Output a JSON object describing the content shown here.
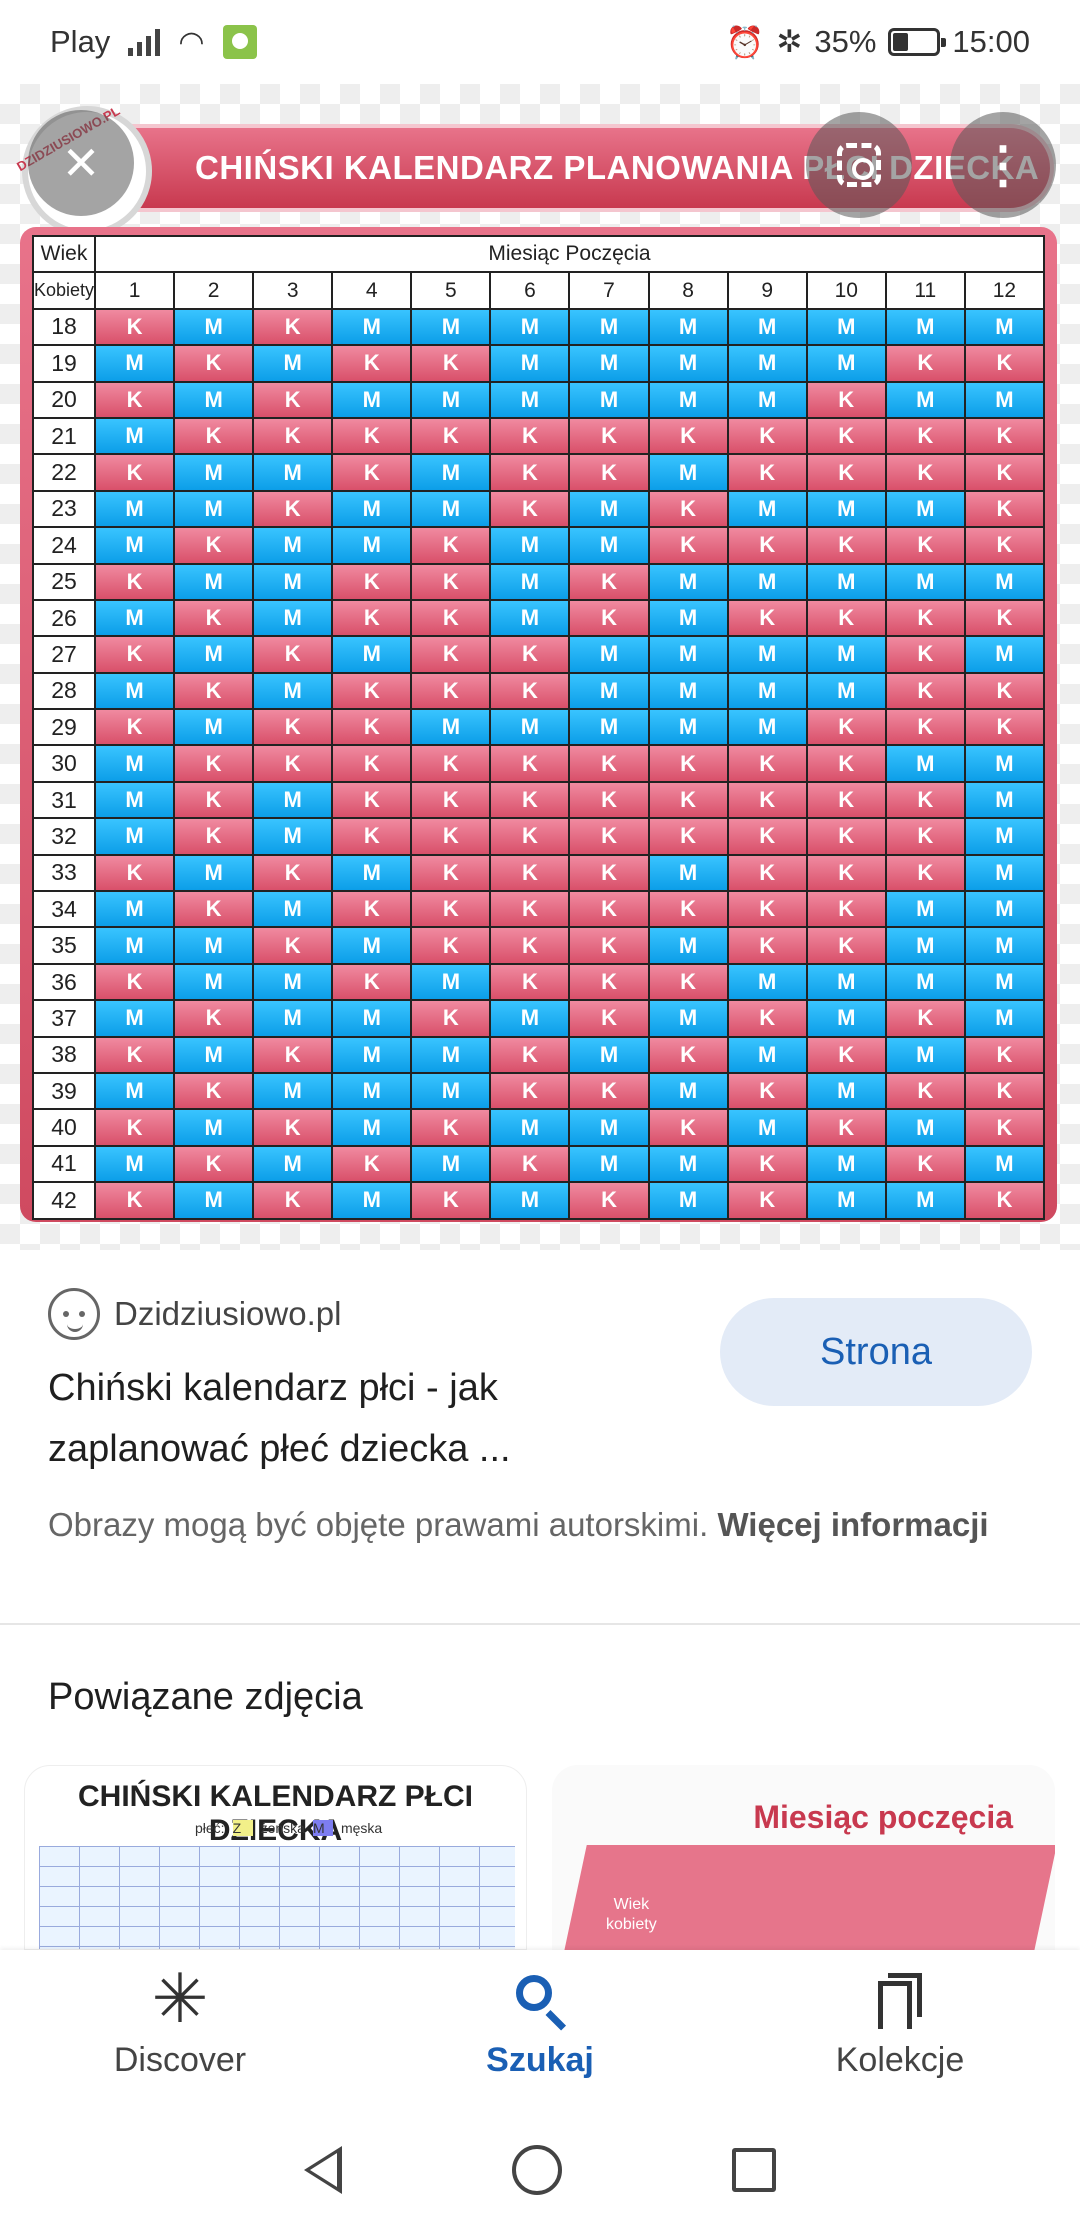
{
  "status_bar": {
    "carrier": "Play",
    "battery_text": "35%",
    "battery_level": 0.35,
    "time": "15:00"
  },
  "viewer": {
    "logo_text": "DZIDZIUSIOWO.PL",
    "chart_title": "CHIŃSKI KALENDARZ PLANOWANIA PŁCI DZIECKA",
    "table": {
      "age_header": "Wiek",
      "age_subheader": "Kobiety",
      "month_header": "Miesiąc Poczęcia",
      "months": [
        "1",
        "2",
        "3",
        "4",
        "5",
        "6",
        "7",
        "8",
        "9",
        "10",
        "11",
        "12"
      ],
      "rows": [
        {
          "age": "18",
          "values": [
            "K",
            "M",
            "K",
            "M",
            "M",
            "M",
            "M",
            "M",
            "M",
            "M",
            "M",
            "M"
          ]
        },
        {
          "age": "19",
          "values": [
            "M",
            "K",
            "M",
            "K",
            "K",
            "M",
            "M",
            "M",
            "M",
            "M",
            "K",
            "K"
          ]
        },
        {
          "age": "20",
          "values": [
            "K",
            "M",
            "K",
            "M",
            "M",
            "M",
            "M",
            "M",
            "M",
            "K",
            "M",
            "M"
          ]
        },
        {
          "age": "21",
          "values": [
            "M",
            "K",
            "K",
            "K",
            "K",
            "K",
            "K",
            "K",
            "K",
            "K",
            "K",
            "K"
          ]
        },
        {
          "age": "22",
          "values": [
            "K",
            "M",
            "M",
            "K",
            "M",
            "K",
            "K",
            "M",
            "K",
            "K",
            "K",
            "K"
          ]
        },
        {
          "age": "23",
          "values": [
            "M",
            "M",
            "K",
            "M",
            "M",
            "K",
            "M",
            "K",
            "M",
            "M",
            "M",
            "K"
          ]
        },
        {
          "age": "24",
          "values": [
            "M",
            "K",
            "M",
            "M",
            "K",
            "M",
            "M",
            "K",
            "K",
            "K",
            "K",
            "K"
          ]
        },
        {
          "age": "25",
          "values": [
            "K",
            "M",
            "M",
            "K",
            "K",
            "M",
            "K",
            "M",
            "M",
            "M",
            "M",
            "M"
          ]
        },
        {
          "age": "26",
          "values": [
            "M",
            "K",
            "M",
            "K",
            "K",
            "M",
            "K",
            "M",
            "K",
            "K",
            "K",
            "K"
          ]
        },
        {
          "age": "27",
          "values": [
            "K",
            "M",
            "K",
            "M",
            "K",
            "K",
            "M",
            "M",
            "M",
            "M",
            "K",
            "M"
          ]
        },
        {
          "age": "28",
          "values": [
            "M",
            "K",
            "M",
            "K",
            "K",
            "K",
            "M",
            "M",
            "M",
            "M",
            "K",
            "K"
          ]
        },
        {
          "age": "29",
          "values": [
            "K",
            "M",
            "K",
            "K",
            "M",
            "M",
            "M",
            "M",
            "M",
            "K",
            "K",
            "K"
          ]
        },
        {
          "age": "30",
          "values": [
            "M",
            "K",
            "K",
            "K",
            "K",
            "K",
            "K",
            "K",
            "K",
            "K",
            "M",
            "M"
          ]
        },
        {
          "age": "31",
          "values": [
            "M",
            "K",
            "M",
            "K",
            "K",
            "K",
            "K",
            "K",
            "K",
            "K",
            "K",
            "M"
          ]
        },
        {
          "age": "32",
          "values": [
            "M",
            "K",
            "M",
            "K",
            "K",
            "K",
            "K",
            "K",
            "K",
            "K",
            "K",
            "M"
          ]
        },
        {
          "age": "33",
          "values": [
            "K",
            "M",
            "K",
            "M",
            "K",
            "K",
            "K",
            "M",
            "K",
            "K",
            "K",
            "M"
          ]
        },
        {
          "age": "34",
          "values": [
            "M",
            "K",
            "M",
            "K",
            "K",
            "K",
            "K",
            "K",
            "K",
            "K",
            "M",
            "M"
          ]
        },
        {
          "age": "35",
          "values": [
            "M",
            "M",
            "K",
            "M",
            "K",
            "K",
            "K",
            "M",
            "K",
            "K",
            "M",
            "M"
          ]
        },
        {
          "age": "36",
          "values": [
            "K",
            "M",
            "M",
            "K",
            "M",
            "K",
            "K",
            "K",
            "M",
            "M",
            "M",
            "M"
          ]
        },
        {
          "age": "37",
          "values": [
            "M",
            "K",
            "M",
            "M",
            "K",
            "M",
            "K",
            "M",
            "K",
            "M",
            "K",
            "M"
          ]
        },
        {
          "age": "38",
          "values": [
            "K",
            "M",
            "K",
            "M",
            "M",
            "K",
            "M",
            "K",
            "M",
            "K",
            "M",
            "K"
          ]
        },
        {
          "age": "39",
          "values": [
            "M",
            "K",
            "M",
            "M",
            "M",
            "K",
            "K",
            "M",
            "K",
            "M",
            "K",
            "K"
          ]
        },
        {
          "age": "40",
          "values": [
            "K",
            "M",
            "K",
            "M",
            "K",
            "M",
            "M",
            "K",
            "M",
            "K",
            "M",
            "K"
          ]
        },
        {
          "age": "41",
          "values": [
            "M",
            "K",
            "M",
            "K",
            "M",
            "K",
            "M",
            "M",
            "K",
            "M",
            "K",
            "M"
          ]
        },
        {
          "age": "42",
          "values": [
            "K",
            "M",
            "K",
            "M",
            "K",
            "M",
            "K",
            "M",
            "K",
            "M",
            "M",
            "K"
          ]
        }
      ]
    },
    "colors": {
      "K": "#dd5a72",
      "M": "#1aaef2",
      "accent": "#1a5fb4"
    }
  },
  "info": {
    "source_name": "Dzidziusiowo.pl",
    "visit_button": "Strona",
    "title": "Chiński kalendarz płci - jak zaplanować płeć dziecka ...",
    "rights_text": "Obrazy mogą być objęte prawami autorskimi.",
    "rights_link": "Więcej informacji"
  },
  "related": {
    "heading": "Powiązane zdjęcia",
    "thumb1_title": "CHIŃSKI KALENDARZ PŁCI DZIECKA",
    "thumb1_legend_a": "płeć:",
    "thumb1_legend_b": "Z",
    "thumb1_legend_c": "żeńska",
    "thumb1_legend_d": "M",
    "thumb1_legend_e": "męska",
    "thumb2_title": "Miesiąc poczęcia",
    "thumb2_label_1": "Wiek",
    "thumb2_label_2": "kobiety"
  },
  "bottom_nav": {
    "discover": "Discover",
    "search": "Szukaj",
    "collections": "Kolekcje"
  }
}
